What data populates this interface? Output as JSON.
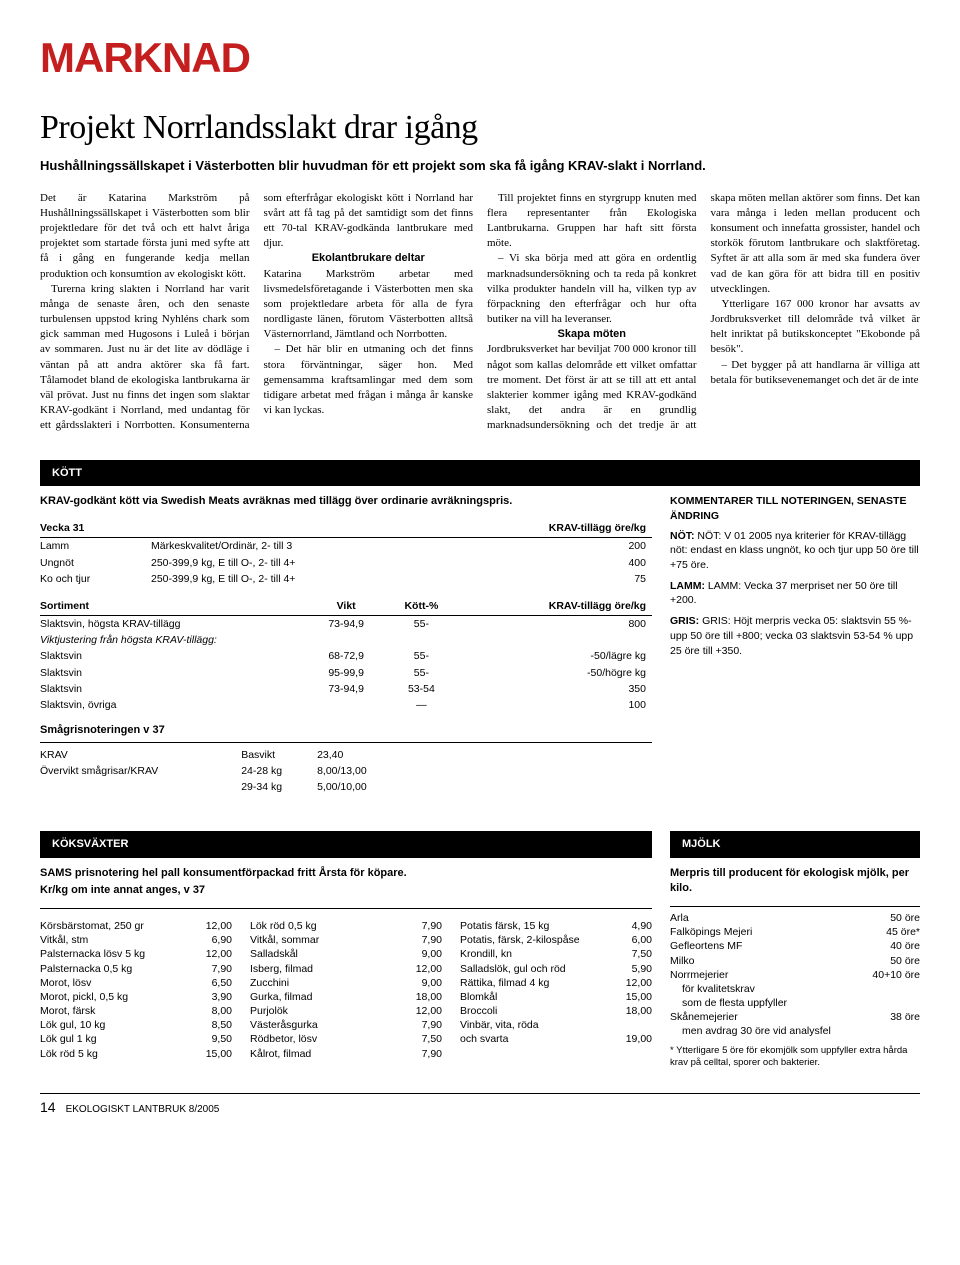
{
  "section_tag": "MARKNAD",
  "article": {
    "title": "Projekt Norrlandsslakt drar igång",
    "lead": "Hushållningssällskapet i Västerbotten blir huvudman för ett projekt som ska få igång KRAV-slakt i Norrland.",
    "body_paragraphs": [
      "Det är Katarina Markström på Hushållningssällskapet i Västerbotten som blir projektledare för det två och ett halvt åriga projektet som startade första juni med syfte att få i gång en fungerande kedja mellan produktion och konsumtion av ekologiskt kött.",
      "Turerna kring slakten i Norrland har varit många de senaste åren, och den senaste turbulensen uppstod kring Nyhléns chark som gick samman med Hugosons i Luleå i början av sommaren. Just nu är det lite av dödläge i väntan på att andra aktörer ska få fart. Tålamodet bland de ekologiska lantbrukarna är väl prövat. Just nu finns det ingen som slaktar KRAV-godkänt i Norrland, med undantag för ett gårdsslakteri i Norrbotten. Konsumenterna som efterfrågar ekologiskt kött i Norrland har svårt att få tag på det samtidigt som det finns ett 70-tal KRAV-godkända lantbrukare med djur."
    ],
    "subhead1": "Ekolantbrukare deltar",
    "body_paragraphs2": [
      "Katarina Markström arbetar med livsmedelsföretagande i Västerbotten men ska som projektledare arbeta för alla de fyra nordligaste länen, förutom Västerbotten alltså Västernorrland, Jämtland och Norrbotten.",
      "– Det här blir en utmaning och det finns stora förväntningar, säger hon. Med gemensamma kraftsamlingar med dem som tidigare arbetat med frågan i många år kanske vi kan lyckas.",
      "Till projektet finns en styrgrupp knuten med flera representanter från Ekologiska Lantbrukarna. Gruppen har haft sitt första möte.",
      "– Vi ska börja med att göra en ordentlig marknadsundersökning och ta reda på konkret vilka produkter handeln vill ha, vilken typ av förpackning den efterfrågar och hur ofta butiker na vill ha leveranser."
    ],
    "subhead2": "Skapa möten",
    "body_paragraphs3": [
      "Jordbruksverket har beviljat 700 000 kronor till något som kallas delområde ett vilket omfattar tre moment. Det först är att se till att ett antal slakterier kommer igång med KRAV-godkänd slakt, det andra är en grundlig marknadsundersökning och det tredje är att skapa möten mellan aktörer som finns. Det kan vara många i leden mellan producent och konsument och innefatta grossister, handel och storkök förutom lantbrukare och slaktföretag. Syftet är att alla som är med ska fundera över vad de kan göra för att bidra till en positiv utvecklingen.",
      "Ytterligare 167 000 kronor har avsatts av Jordbruksverket till delområde två vilket är helt inriktat på butikskonceptet \"Ekobonde på besök\".",
      "– Det bygger på att handlarna är villiga att betala för butiksevenemanget och det är de inte"
    ]
  },
  "kott": {
    "pill_label": "KÖTT",
    "intro": "KRAV-godkänt kött via Swedish Meats avräknas med tillägg över ordinarie avräkningspris.",
    "t1_head_week": "Vecka 31",
    "t1_head_tillagg": "KRAV-tillägg öre/kg",
    "t1_rows": [
      {
        "a": "Lamm",
        "b": "Märkeskvalitet/Ordinär, 2- till 3",
        "c": "200"
      },
      {
        "a": "Ungnöt",
        "b": "250-399,9 kg, E till O-, 2- till 4+",
        "c": "400"
      },
      {
        "a": "Ko och tjur",
        "b": "250-399,9 kg, E till O-, 2- till 4+",
        "c": "75"
      }
    ],
    "t2_head_sortiment": "Sortiment",
    "t2_head_vikt": "Vikt",
    "t2_head_kott": "Kött-%",
    "t2_head_tillagg": "KRAV-tillägg öre/kg",
    "t2_row_top": {
      "a": "Slaktsvin, högsta KRAV-tillägg",
      "b": "73-94,9",
      "c": "55-",
      "d": "800"
    },
    "t2_subhead": "Viktjustering från högsta KRAV-tillägg:",
    "t2_rows": [
      {
        "a": "Slaktsvin",
        "b": "68-72,9",
        "c": "55-",
        "d": "-50/lägre kg"
      },
      {
        "a": "Slaktsvin",
        "b": "95-99,9",
        "c": "55-",
        "d": "-50/högre kg"
      },
      {
        "a": "Slaktsvin",
        "b": "73-94,9",
        "c": "53-54",
        "d": "350"
      },
      {
        "a": "Slaktsvin, övriga",
        "b": "",
        "c": "—",
        "d": "100"
      }
    ],
    "t3_head": "Smågrisnoteringen v 37",
    "t3_rows": [
      {
        "a": "KRAV",
        "b": "Basvikt",
        "c": "23,40"
      },
      {
        "a": "Övervikt smågrisar/KRAV",
        "b": "24-28 kg",
        "c": "8,00/13,00"
      },
      {
        "a": "",
        "b": "29-34 kg",
        "c": "5,00/10,00"
      }
    ],
    "comment_head": "KOMMENTARER TILL NOTERINGEN, SENASTE ÄNDRING",
    "comment_not": "NÖT: V 01 2005 nya kriterier för KRAV-tillägg nöt: endast en klass ungnöt, ko och tjur upp 50 öre till +75 öre.",
    "comment_lamm": "LAMM: Vecka 37 merpriset ner 50 öre till +200.",
    "comment_gris": "GRIS: Höjt merpris vecka 05: slaktsvin 55 %- upp 50 öre till +800; vecka 03 slaktsvin 53-54 % upp 25 öre till +350."
  },
  "koksvaxter": {
    "pill_label": "KÖKSVÄXTER",
    "intro1": "SAMS prisnotering hel pall konsumentförpackad fritt Årsta för köpare.",
    "intro2": "Kr/kg om inte annat anges, v 37",
    "col1": [
      {
        "k": "Körsbärstomat, 250 gr",
        "v": "12,00"
      },
      {
        "k": "Vitkål, stm",
        "v": "6,90"
      },
      {
        "k": "Palsternacka lösv 5 kg",
        "v": "12,00"
      },
      {
        "k": "Palsternacka 0,5 kg",
        "v": "7,90"
      },
      {
        "k": "Morot, lösv",
        "v": "6,50"
      },
      {
        "k": "Morot, pickl, 0,5 kg",
        "v": "3,90"
      },
      {
        "k": "Morot, färsk",
        "v": "8,00"
      },
      {
        "k": "Lök gul, 10 kg",
        "v": "8,50"
      },
      {
        "k": "Lök gul 1 kg",
        "v": "9,50"
      },
      {
        "k": "Lök röd 5 kg",
        "v": "15,00"
      }
    ],
    "col2": [
      {
        "k": "Lök röd 0,5 kg",
        "v": "7,90"
      },
      {
        "k": "Vitkål, sommar",
        "v": "7,90"
      },
      {
        "k": "Salladskål",
        "v": "9,00"
      },
      {
        "k": "Isberg, filmad",
        "v": "12,00"
      },
      {
        "k": "Zucchini",
        "v": "9,00"
      },
      {
        "k": "Gurka, filmad",
        "v": "18,00"
      },
      {
        "k": "Purjolök",
        "v": "12,00"
      },
      {
        "k": "Västeråsgurka",
        "v": "7,90"
      },
      {
        "k": "Rödbetor, lösv",
        "v": "7,50"
      },
      {
        "k": "Kålrot, filmad",
        "v": "7,90"
      }
    ],
    "col3": [
      {
        "k": "Potatis färsk, 15 kg",
        "v": "4,90"
      },
      {
        "k": "Potatis, färsk, 2-kilospåse",
        "v": "6,00"
      },
      {
        "k": "Krondill, kn",
        "v": "7,50"
      },
      {
        "k": "Salladslök, gul och röd",
        "v": "5,90"
      },
      {
        "k": "Rättika, filmad 4 kg",
        "v": "12,00"
      },
      {
        "k": "Blomkål",
        "v": "15,00"
      },
      {
        "k": "Broccoli",
        "v": "18,00"
      },
      {
        "k": "Vinbär, vita, röda",
        "v": ""
      },
      {
        "k": "och svarta",
        "v": "19,00"
      }
    ]
  },
  "mjolk": {
    "pill_label": "MJÖLK",
    "intro": "Merpris till producent för ekologisk mjölk, per kilo.",
    "rows": [
      {
        "k": "Arla",
        "v": "50 öre"
      },
      {
        "k": "Falköpings Mejeri",
        "v": "45 öre*"
      },
      {
        "k": "Gefleortens MF",
        "v": "40 öre"
      },
      {
        "k": "Milko",
        "v": "50 öre"
      },
      {
        "k": "Norrmejerier",
        "v": "40+10 öre"
      }
    ],
    "norr_sub1": "för kvalitetskrav",
    "norr_sub2": "som de flesta uppfyller",
    "skane_row": {
      "k": "Skånemejerier",
      "v": "38 öre"
    },
    "skane_sub": "men avdrag 30 öre vid analysfel",
    "footnote": "* Ytterligare 5 öre för ekomjölk som uppfyller extra hårda krav på celltal, sporer och bakterier."
  },
  "footer": {
    "page": "14",
    "pub": "EKOLOGISKT LANTBRUK 8/2005"
  },
  "colors": {
    "red": "#c41e1e",
    "black": "#000000"
  }
}
